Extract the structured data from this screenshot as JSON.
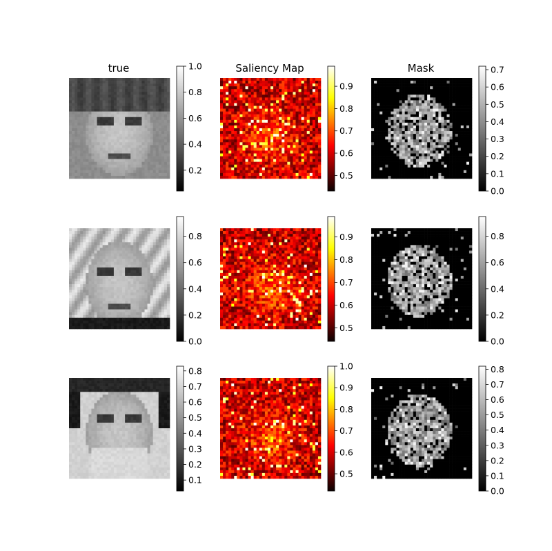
{
  "chart_data": {
    "type": "heatmap",
    "column_titles": [
      "true",
      "Saliency Map",
      "Mask"
    ],
    "panels": [
      {
        "row": 0,
        "col": 0,
        "kind": "face-photo",
        "colormap": "gray",
        "vmin": 0.04,
        "vmax": 1.0,
        "ticks": [
          "0.2",
          "0.4",
          "0.6",
          "0.8",
          "1.0"
        ],
        "tick_values": [
          0.2,
          0.4,
          0.6,
          0.8,
          1.0
        ]
      },
      {
        "row": 0,
        "col": 1,
        "kind": "saliency",
        "colormap": "hot",
        "vmin": 0.43,
        "vmax": 0.99,
        "ticks": [
          "0.5",
          "0.6",
          "0.7",
          "0.8",
          "0.9"
        ],
        "tick_values": [
          0.5,
          0.6,
          0.7,
          0.8,
          0.9
        ]
      },
      {
        "row": 0,
        "col": 2,
        "kind": "mask",
        "colormap": "gray",
        "vmin": 0.0,
        "vmax": 0.72,
        "ticks": [
          "0.0",
          "0.1",
          "0.2",
          "0.3",
          "0.4",
          "0.5",
          "0.6",
          "0.7"
        ],
        "tick_values": [
          0,
          0.1,
          0.2,
          0.3,
          0.4,
          0.5,
          0.6,
          0.7
        ]
      },
      {
        "row": 1,
        "col": 0,
        "kind": "face-photo",
        "colormap": "gray",
        "vmin": 0.0,
        "vmax": 0.95,
        "ticks": [
          "0.0",
          "0.2",
          "0.4",
          "0.6",
          "0.8"
        ],
        "tick_values": [
          0,
          0.2,
          0.4,
          0.6,
          0.8
        ]
      },
      {
        "row": 1,
        "col": 1,
        "kind": "saliency",
        "colormap": "hot",
        "vmin": 0.44,
        "vmax": 0.99,
        "ticks": [
          "0.5",
          "0.6",
          "0.7",
          "0.8",
          "0.9"
        ],
        "tick_values": [
          0.5,
          0.6,
          0.7,
          0.8,
          0.9
        ]
      },
      {
        "row": 1,
        "col": 2,
        "kind": "mask",
        "colormap": "gray",
        "vmin": 0.0,
        "vmax": 0.95,
        "ticks": [
          "0.0",
          "0.2",
          "0.4",
          "0.6",
          "0.8"
        ],
        "tick_values": [
          0,
          0.2,
          0.4,
          0.6,
          0.8
        ]
      },
      {
        "row": 2,
        "col": 0,
        "kind": "face-photo",
        "colormap": "gray",
        "vmin": 0.03,
        "vmax": 0.83,
        "ticks": [
          "0.1",
          "0.2",
          "0.3",
          "0.4",
          "0.5",
          "0.6",
          "0.7",
          "0.8"
        ],
        "tick_values": [
          0.1,
          0.2,
          0.3,
          0.4,
          0.5,
          0.6,
          0.7,
          0.8
        ]
      },
      {
        "row": 2,
        "col": 1,
        "kind": "saliency",
        "colormap": "hot",
        "vmin": 0.42,
        "vmax": 1.0,
        "ticks": [
          "0.5",
          "0.6",
          "0.7",
          "0.8",
          "0.9",
          "1.0"
        ],
        "tick_values": [
          0.5,
          0.6,
          0.7,
          0.8,
          0.9,
          1.0
        ]
      },
      {
        "row": 2,
        "col": 2,
        "kind": "mask",
        "colormap": "gray",
        "vmin": 0.0,
        "vmax": 0.82,
        "ticks": [
          "0.0",
          "0.1",
          "0.2",
          "0.3",
          "0.4",
          "0.5",
          "0.6",
          "0.7",
          "0.8"
        ],
        "tick_values": [
          0,
          0.1,
          0.2,
          0.3,
          0.4,
          0.5,
          0.6,
          0.7,
          0.8
        ]
      }
    ]
  }
}
